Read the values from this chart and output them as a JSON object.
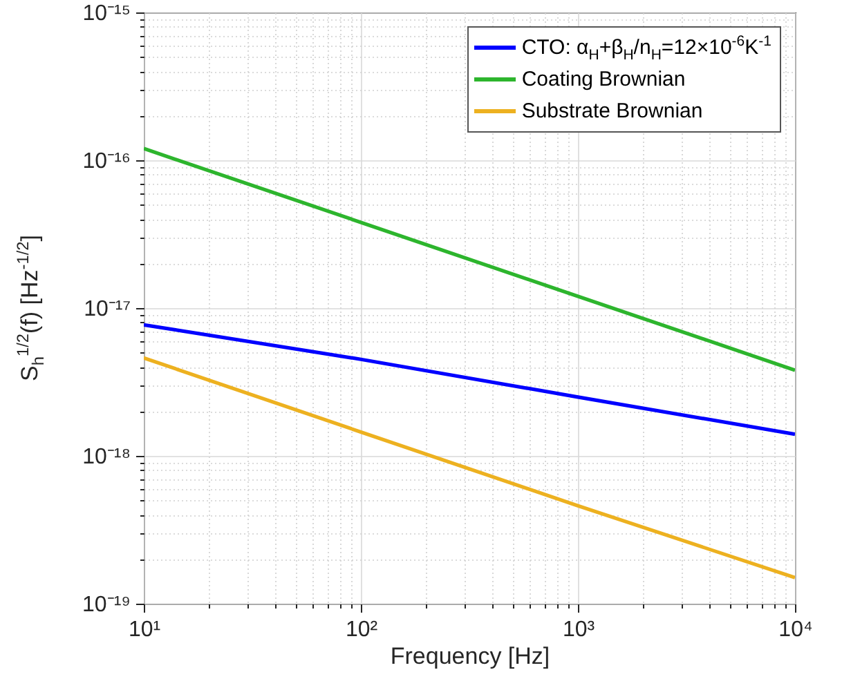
{
  "chart_data": {
    "type": "line",
    "xlabel": "Frequency [Hz]",
    "ylabel": "S$_{h}$$^{1/2}$(f) [Hz$^{-1/2}$]",
    "log": "xy",
    "grid": true,
    "legend": "top right",
    "line_style": "solid",
    "marker": "none",
    "xlim": [
      10,
      10000
    ],
    "ylim": [
      1e-19,
      1e-15
    ],
    "xticks": [
      {
        "value": 10,
        "label": "10¹"
      },
      {
        "value": 20,
        "label": null
      },
      {
        "value": 30,
        "label": null
      },
      {
        "value": 40,
        "label": null
      },
      {
        "value": 50,
        "label": null
      },
      {
        "value": 60,
        "label": null
      },
      {
        "value": 70,
        "label": null
      },
      {
        "value": 80,
        "label": null
      },
      {
        "value": 90,
        "label": null
      },
      {
        "value": 100,
        "label": "10²"
      },
      {
        "value": 200,
        "label": null
      },
      {
        "value": 300,
        "label": null
      },
      {
        "value": 400,
        "label": null
      },
      {
        "value": 500,
        "label": null
      },
      {
        "value": 600,
        "label": null
      },
      {
        "value": 700,
        "label": null
      },
      {
        "value": 800,
        "label": null
      },
      {
        "value": 900,
        "label": null
      },
      {
        "value": 1000,
        "label": "10³"
      },
      {
        "value": 2000,
        "label": null
      },
      {
        "value": 3000,
        "label": null
      },
      {
        "value": 4000,
        "label": null
      },
      {
        "value": 5000,
        "label": null
      },
      {
        "value": 6000,
        "label": null
      },
      {
        "value": 7000,
        "label": null
      },
      {
        "value": 8000,
        "label": null
      },
      {
        "value": 9000,
        "label": null
      },
      {
        "value": 10000,
        "label": "10⁴"
      }
    ],
    "yticks": [
      {
        "value": 1e-19,
        "label": "10⁻¹⁹"
      },
      {
        "value": 2e-19,
        "label": null
      },
      {
        "value": 3e-19,
        "label": null
      },
      {
        "value": 4e-19,
        "label": null
      },
      {
        "value": 5e-19,
        "label": null
      },
      {
        "value": 6e-19,
        "label": null
      },
      {
        "value": 7e-19,
        "label": null
      },
      {
        "value": 8e-19,
        "label": null
      },
      {
        "value": 9e-19,
        "label": null
      },
      {
        "value": 1e-18,
        "label": "10⁻¹⁸"
      },
      {
        "value": 2e-18,
        "label": null
      },
      {
        "value": 3e-18,
        "label": null
      },
      {
        "value": 4e-18,
        "label": null
      },
      {
        "value": 5e-18,
        "label": null
      },
      {
        "value": 6e-18,
        "label": null
      },
      {
        "value": 7e-18,
        "label": null
      },
      {
        "value": 8e-18,
        "label": null
      },
      {
        "value": 9e-18,
        "label": null
      },
      {
        "value": 1e-17,
        "label": "10⁻¹⁷"
      },
      {
        "value": 2e-17,
        "label": null
      },
      {
        "value": 3e-17,
        "label": null
      },
      {
        "value": 4e-17,
        "label": null
      },
      {
        "value": 5e-17,
        "label": null
      },
      {
        "value": 6e-17,
        "label": null
      },
      {
        "value": 7e-17,
        "label": null
      },
      {
        "value": 8e-17,
        "label": null
      },
      {
        "value": 9e-17,
        "label": null
      },
      {
        "value": 1e-16,
        "label": "10⁻¹⁶"
      },
      {
        "value": 2e-16,
        "label": null
      },
      {
        "value": 3e-16,
        "label": null
      },
      {
        "value": 4e-16,
        "label": null
      },
      {
        "value": 5e-16,
        "label": null
      },
      {
        "value": 6e-16,
        "label": null
      },
      {
        "value": 7e-16,
        "label": null
      },
      {
        "value": 8e-16,
        "label": null
      },
      {
        "value": 9e-16,
        "label": null
      },
      {
        "value": 1e-15,
        "label": "10⁻¹⁵"
      }
    ],
    "x": [
      10,
      100,
      1000,
      10000
    ],
    "series": [
      {
        "name": "CTO: α$_{H}$+β$_{H}$/n$_{H}$=12×10$^{-6}$K$^{-1}$",
        "color": "#0000ff",
        "values": [
          7.7e-18,
          4.5e-18,
          2.5e-18,
          1.4e-18
        ]
      },
      {
        "name": "Coating Brownian",
        "color": "#2db52d",
        "values": [
          1.2e-16,
          3.8e-17,
          1.2e-17,
          3.8e-18
        ]
      },
      {
        "name": "Substrate Brownian",
        "color": "#edb120",
        "values": [
          4.6e-18,
          1.45e-18,
          4.6e-19,
          1.5e-19
        ]
      }
    ]
  }
}
